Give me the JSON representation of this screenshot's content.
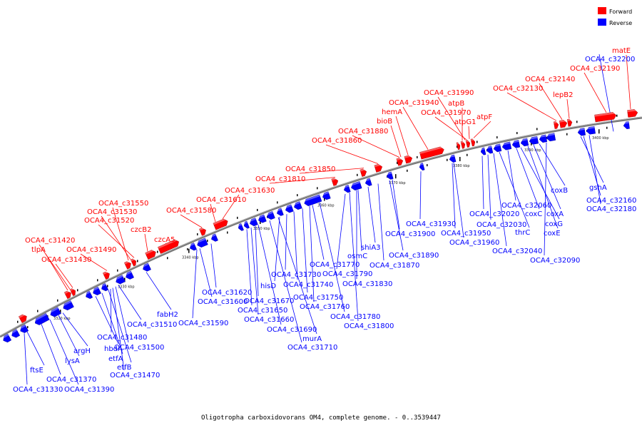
{
  "caption": "Oligotropha carboxidovorans OM4, complete genome. - 0..3539447",
  "legend": [
    {
      "label": "Forward",
      "color": "#ff0000"
    },
    {
      "label": "Reverse",
      "color": "#0000ff"
    }
  ],
  "colors": {
    "forward": "#ff0000",
    "reverse": "#0000ff",
    "backbone": "#777777",
    "forward_line": "#ff0000",
    "reverse_line": "#0000ff"
  },
  "ticks": [
    "3320 kbp",
    "3330 kbp",
    "3340 kbp",
    "3350 kbp",
    "3360 kbp",
    "3370 kbp",
    "3380 kbp",
    "3390 kbp",
    "3400 kbp"
  ],
  "forward_labels": [
    "OCA4_c31420",
    "tlpA",
    "OCA4_c31430",
    "OCA4_c31490",
    "OCA4_c31550",
    "OCA4_c31530",
    "OCA4_c31520",
    "czcB2",
    "czcA5",
    "OCA4_c31580",
    "OCA4_c31610",
    "OCA4_c31630",
    "OCA4_c31810",
    "OCA4_c31850",
    "OCA4_c31860",
    "OCA4_c31880",
    "bioB",
    "hemA",
    "OCA4_c31940",
    "OCA4_c31990",
    "atpB",
    "OCA4_c31970",
    "atpG1",
    "atpF",
    "OCA4_c32130",
    "OCA4_c32140",
    "lepB2",
    "OCA4_c32190",
    "matE"
  ],
  "reverse_labels": [
    "ftsE",
    "OCA4_c31330",
    "OCA4_c31370",
    "OCA4_c31390",
    "lysA",
    "argH",
    "hbdA",
    "etfA",
    "etfB",
    "OCA4_c31470",
    "OCA4_c31480",
    "OCA4_c31500",
    "OCA4_c31510",
    "fabH2",
    "OCA4_c31590",
    "OCA4_c31600",
    "OCA4_c31620",
    "OCA4_c31650",
    "OCA4_c31660",
    "OCA4_c31670",
    "OCA4_c31690",
    "OCA4_c31710",
    "murA",
    "hisD",
    "OCA4_c31730",
    "OCA4_c31740",
    "OCA4_c31750",
    "OCA4_c31760",
    "OCA4_c31770",
    "OCA4_c31780",
    "OCA4_c31790",
    "OCA4_c31800",
    "OCA4_c31830",
    "osmC",
    "shiA3",
    "OCA4_c31870",
    "OCA4_c31890",
    "OCA4_c31900",
    "OCA4_c31930",
    "OCA4_c31950",
    "OCA4_c31960",
    "OCA4_c32020",
    "OCA4_c32030",
    "OCA4_c32040",
    "thrC",
    "OCA4_c32060",
    "coxC",
    "coxG",
    "coxE",
    "coxA",
    "coxB",
    "OCA4_c32090",
    "gshA",
    "OCA4_c32160",
    "OCA4_c32180",
    "OCA4_c32200"
  ]
}
